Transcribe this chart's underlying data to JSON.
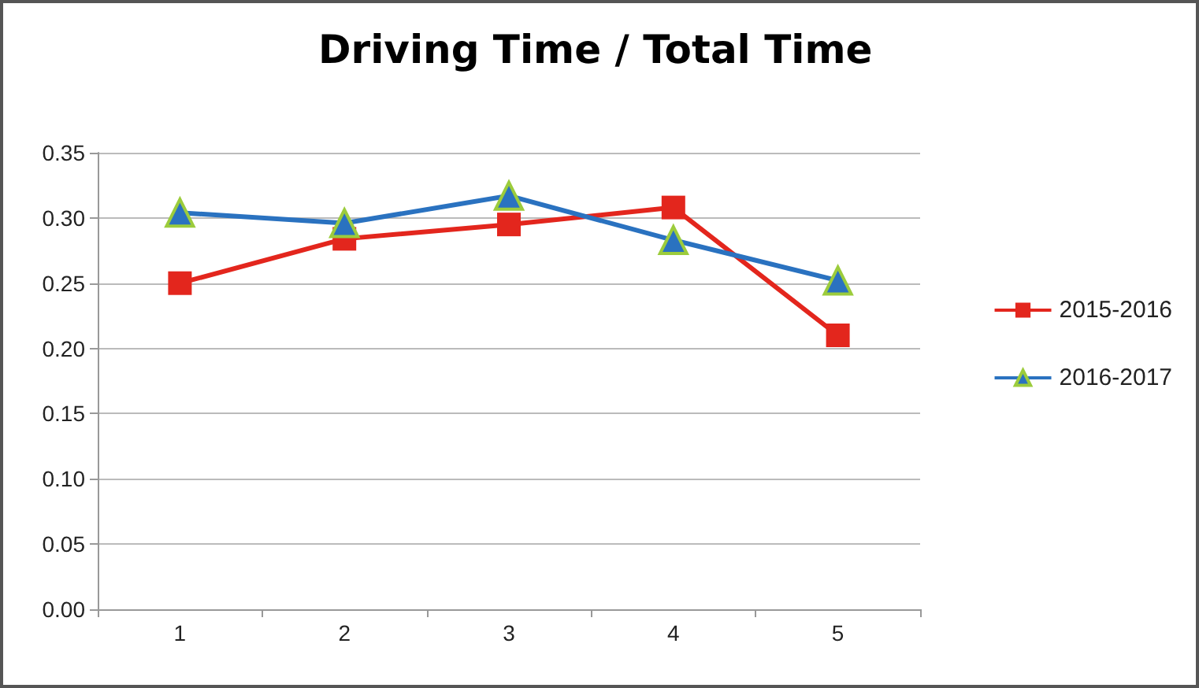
{
  "chart_data": {
    "type": "line",
    "title": "Driving Time / Total Time",
    "categories": [
      "1",
      "2",
      "3",
      "4",
      "5"
    ],
    "series": [
      {
        "name": "2015-2016",
        "color": "#e3261d",
        "marker": "square",
        "values": [
          0.25,
          0.284,
          0.295,
          0.308,
          0.21
        ]
      },
      {
        "name": "2016-2017",
        "color": "#2a72c0",
        "marker": "triangle",
        "values": [
          0.304,
          0.296,
          0.317,
          0.283,
          0.252
        ]
      }
    ],
    "ylim": [
      0,
      0.35
    ],
    "yticks": [
      {
        "value": 0,
        "label": "0.00"
      },
      0.05,
      {
        "value": 0.1,
        "label": "0.10"
      },
      0.15,
      {
        "value": 0.2,
        "label": "0.20"
      },
      0.25,
      {
        "value": 0.3,
        "label": "0.30"
      },
      0.35
    ],
    "grid": "y",
    "legend": "right"
  }
}
